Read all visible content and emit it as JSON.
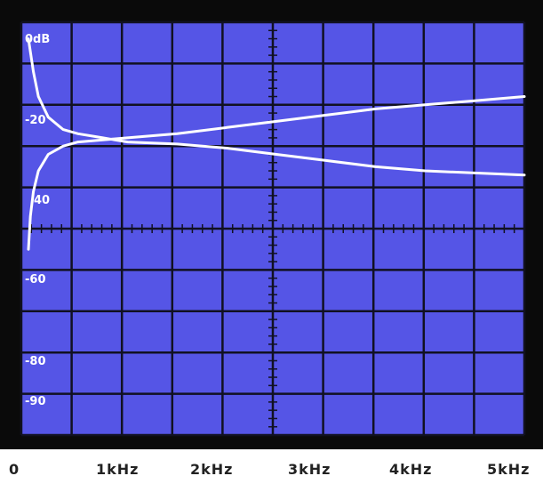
{
  "chart_data": {
    "type": "line",
    "title": "",
    "xlabel": "",
    "ylabel": "",
    "x_tick_labels": [
      "0",
      "1kHz",
      "2kHz",
      "3kHz",
      "4kHz",
      "5kHz"
    ],
    "y_tick_labels": [
      "0dB",
      "-20",
      "40",
      "-60",
      "-80",
      "-90"
    ],
    "grid": true,
    "colors": {
      "screen": "#5555e6",
      "grid": "#111122",
      "trace": "#ffffff",
      "frame": "#0a0a0a"
    },
    "series": [
      {
        "points": [
          [
            0.0,
            -4
          ],
          [
            0.05,
            -12
          ],
          [
            0.1,
            -18
          ],
          [
            0.2,
            -23
          ],
          [
            0.35,
            -26
          ],
          [
            0.5,
            -27
          ],
          [
            0.75,
            -28
          ],
          [
            1.0,
            -29
          ],
          [
            1.5,
            -29.5
          ],
          [
            2.0,
            -30.5
          ],
          [
            2.5,
            -32
          ],
          [
            3.0,
            -33.5
          ],
          [
            3.5,
            -35
          ],
          [
            4.0,
            -36
          ],
          [
            4.5,
            -36.5
          ],
          [
            5.0,
            -37
          ]
        ]
      },
      {
        "points": [
          [
            0.0,
            -55
          ],
          [
            0.02,
            -47
          ],
          [
            0.05,
            -41
          ],
          [
            0.1,
            -36
          ],
          [
            0.2,
            -32
          ],
          [
            0.35,
            -30
          ],
          [
            0.5,
            -29
          ],
          [
            0.75,
            -28.5
          ],
          [
            1.0,
            -28
          ],
          [
            1.5,
            -27
          ],
          [
            2.0,
            -25.5
          ],
          [
            2.5,
            -24
          ],
          [
            3.0,
            -22.5
          ],
          [
            3.5,
            -21
          ],
          [
            4.0,
            -20
          ],
          [
            4.5,
            -19
          ],
          [
            5.0,
            -18
          ]
        ]
      }
    ]
  }
}
